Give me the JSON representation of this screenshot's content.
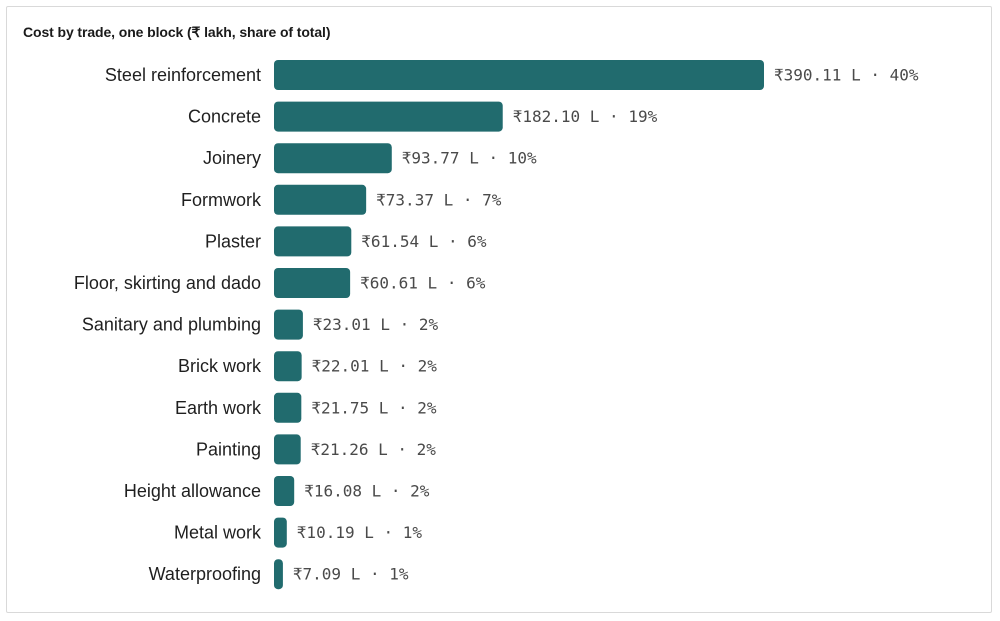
{
  "chart_data": {
    "type": "bar",
    "orientation": "horizontal",
    "title": "Cost by trade, one block (₹ lakh, share of total)",
    "xlabel": "",
    "ylabel": "",
    "grid": false,
    "legend": "none",
    "bar_color": "#216b6e",
    "value_unit_prefix": "₹",
    "value_unit_suffix": "L",
    "categories": [
      "Steel reinforcement",
      "Concrete",
      "Joinery",
      "Formwork",
      "Plaster",
      "Floor, skirting and dado",
      "Sanitary and plumbing",
      "Brick work",
      "Earth work",
      "Painting",
      "Height allowance",
      "Metal work",
      "Waterproofing"
    ],
    "values": [
      390.11,
      182.1,
      93.77,
      73.37,
      61.54,
      60.61,
      23.01,
      22.01,
      21.75,
      21.26,
      16.08,
      10.19,
      7.09
    ],
    "value_labels": [
      "₹390.11 L · 40%",
      "₹182.10 L · 19%",
      "₹93.77 L · 10%",
      "₹73.37 L · 7%",
      "₹61.54 L · 6%",
      "₹60.61 L · 6%",
      "₹23.01 L · 2%",
      "₹22.01 L · 2%",
      "₹21.75 L · 2%",
      "₹21.26 L · 2%",
      "₹16.08 L · 2%",
      "₹10.19 L · 1%",
      "₹7.09 L · 1%"
    ],
    "shares_percent": [
      40,
      19,
      10,
      7,
      6,
      6,
      2,
      2,
      2,
      2,
      2,
      1,
      1
    ]
  }
}
